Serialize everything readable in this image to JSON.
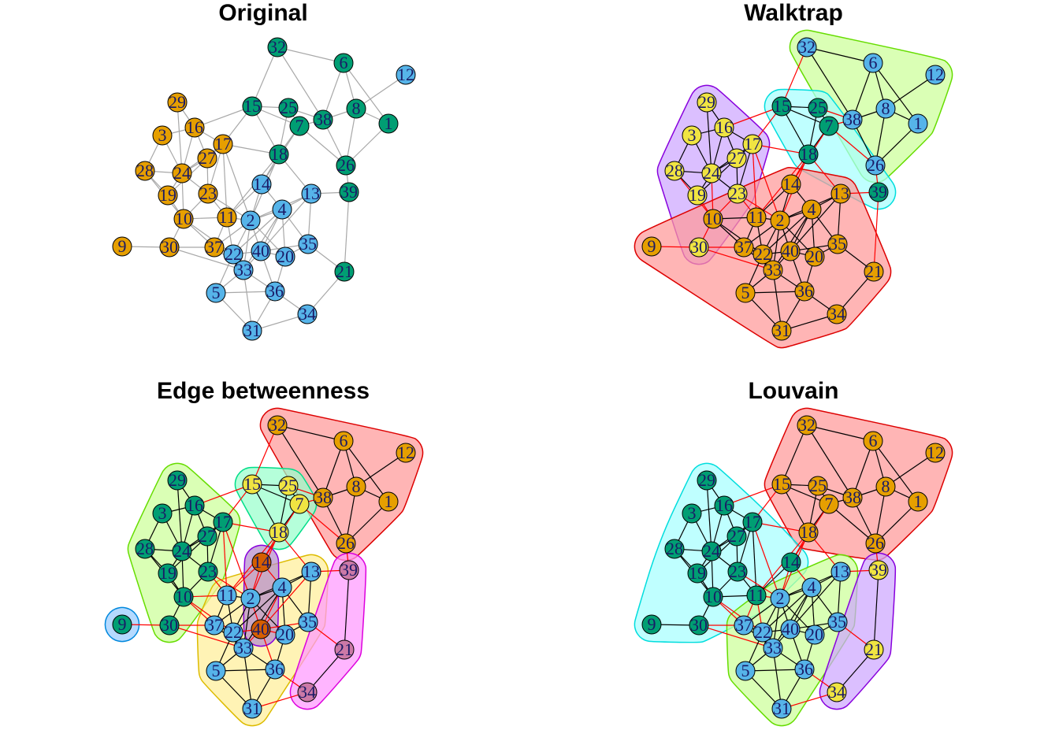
{
  "titles": {
    "original": "Original",
    "walktrap": "Walktrap",
    "edge": "Edge betweenness",
    "louvain": "Louvain"
  },
  "colors": {
    "orange": "#E69F00",
    "teal": "#009E73",
    "blue": "#56B4E9",
    "yellow": "#F0E442",
    "darkorange": "#D55E00",
    "purple": "#CC79A7",
    "darkblue": "#0072B2",
    "edge_gray": "#a8a8a8",
    "crossing_edge": "#ff0000"
  },
  "nodes": [
    "1",
    "2",
    "3",
    "4",
    "5",
    "6",
    "7",
    "8",
    "9",
    "10",
    "11",
    "12",
    "13",
    "14",
    "15",
    "16",
    "17",
    "18",
    "19",
    "20",
    "21",
    "22",
    "23",
    "24",
    "25",
    "26",
    "27",
    "28",
    "29",
    "30",
    "31",
    "32",
    "33",
    "34",
    "35",
    "36",
    "37",
    "38",
    "39",
    "40"
  ],
  "edges": [
    [
      "32",
      "6"
    ],
    [
      "32",
      "15"
    ],
    [
      "32",
      "38"
    ],
    [
      "6",
      "8"
    ],
    [
      "6",
      "38"
    ],
    [
      "6",
      "1"
    ],
    [
      "12",
      "8"
    ],
    [
      "8",
      "38"
    ],
    [
      "8",
      "1"
    ],
    [
      "8",
      "26"
    ],
    [
      "1",
      "26"
    ],
    [
      "15",
      "25"
    ],
    [
      "15",
      "7"
    ],
    [
      "15",
      "18"
    ],
    [
      "15",
      "16"
    ],
    [
      "15",
      "17"
    ],
    [
      "25",
      "7"
    ],
    [
      "25",
      "38"
    ],
    [
      "25",
      "18"
    ],
    [
      "7",
      "38"
    ],
    [
      "7",
      "18"
    ],
    [
      "7",
      "26"
    ],
    [
      "7",
      "14"
    ],
    [
      "38",
      "26"
    ],
    [
      "26",
      "39"
    ],
    [
      "18",
      "14"
    ],
    [
      "18",
      "2"
    ],
    [
      "18",
      "17"
    ],
    [
      "18",
      "13"
    ],
    [
      "29",
      "16"
    ],
    [
      "29",
      "24"
    ],
    [
      "16",
      "3"
    ],
    [
      "16",
      "17"
    ],
    [
      "16",
      "24"
    ],
    [
      "16",
      "27"
    ],
    [
      "3",
      "24"
    ],
    [
      "3",
      "28"
    ],
    [
      "17",
      "27"
    ],
    [
      "17",
      "24"
    ],
    [
      "17",
      "23"
    ],
    [
      "17",
      "11"
    ],
    [
      "27",
      "24"
    ],
    [
      "27",
      "23"
    ],
    [
      "27",
      "19"
    ],
    [
      "28",
      "24"
    ],
    [
      "28",
      "19"
    ],
    [
      "28",
      "10"
    ],
    [
      "24",
      "19"
    ],
    [
      "24",
      "10"
    ],
    [
      "24",
      "23"
    ],
    [
      "19",
      "10"
    ],
    [
      "23",
      "10"
    ],
    [
      "23",
      "11"
    ],
    [
      "23",
      "2"
    ],
    [
      "10",
      "11"
    ],
    [
      "10",
      "30"
    ],
    [
      "10",
      "37"
    ],
    [
      "10",
      "22"
    ],
    [
      "9",
      "30"
    ],
    [
      "30",
      "37"
    ],
    [
      "30",
      "33"
    ],
    [
      "11",
      "2"
    ],
    [
      "11",
      "22"
    ],
    [
      "11",
      "37"
    ],
    [
      "14",
      "2"
    ],
    [
      "14",
      "4"
    ],
    [
      "14",
      "11"
    ],
    [
      "2",
      "4"
    ],
    [
      "2",
      "40"
    ],
    [
      "2",
      "22"
    ],
    [
      "2",
      "33"
    ],
    [
      "2",
      "20"
    ],
    [
      "2",
      "13"
    ],
    [
      "2",
      "37"
    ],
    [
      "4",
      "13"
    ],
    [
      "4",
      "40"
    ],
    [
      "4",
      "20"
    ],
    [
      "4",
      "35"
    ],
    [
      "4",
      "33"
    ],
    [
      "4",
      "22"
    ],
    [
      "13",
      "40"
    ],
    [
      "13",
      "35"
    ],
    [
      "37",
      "22"
    ],
    [
      "37",
      "33"
    ],
    [
      "22",
      "40"
    ],
    [
      "22",
      "33"
    ],
    [
      "22",
      "5"
    ],
    [
      "40",
      "20"
    ],
    [
      "40",
      "35"
    ],
    [
      "40",
      "36"
    ],
    [
      "40",
      "33"
    ],
    [
      "20",
      "35"
    ],
    [
      "20",
      "36"
    ],
    [
      "33",
      "5"
    ],
    [
      "33",
      "36"
    ],
    [
      "33",
      "31"
    ],
    [
      "5",
      "36"
    ],
    [
      "5",
      "31"
    ],
    [
      "36",
      "31"
    ],
    [
      "36",
      "34"
    ],
    [
      "35",
      "21"
    ],
    [
      "39",
      "21"
    ],
    [
      "21",
      "34"
    ],
    [
      "31",
      "34"
    ],
    [
      "18",
      "11"
    ],
    [
      "39",
      "13"
    ],
    [
      "17",
      "2"
    ]
  ],
  "panels": {
    "original": {
      "node_colors": {
        "1": "teal",
        "2": "blue",
        "3": "orange",
        "4": "blue",
        "5": "blue",
        "6": "teal",
        "7": "teal",
        "8": "teal",
        "9": "orange",
        "10": "orange",
        "11": "orange",
        "12": "blue",
        "13": "blue",
        "14": "blue",
        "15": "teal",
        "16": "orange",
        "17": "orange",
        "18": "teal",
        "19": "orange",
        "20": "blue",
        "21": "teal",
        "22": "blue",
        "23": "orange",
        "24": "orange",
        "25": "teal",
        "26": "teal",
        "27": "orange",
        "28": "orange",
        "29": "orange",
        "30": "orange",
        "31": "blue",
        "32": "teal",
        "33": "blue",
        "34": "blue",
        "35": "blue",
        "36": "blue",
        "37": "orange",
        "38": "teal",
        "39": "teal",
        "40": "blue"
      }
    },
    "walktrap": {
      "communities": [
        {
          "color": "#CCFF99",
          "border": "#66DD00",
          "members": [
            "32",
            "6",
            "12",
            "8",
            "1",
            "38",
            "26"
          ],
          "node_color": "blue"
        },
        {
          "color": "#A6FFFF",
          "border": "#00DDDD",
          "members": [
            "15",
            "25",
            "7",
            "18",
            "39"
          ],
          "node_color": "teal"
        },
        {
          "color": "#CDA6FF",
          "border": "#8800DD",
          "members": [
            "29",
            "16",
            "3",
            "17",
            "27",
            "28",
            "24",
            "19",
            "23",
            "30"
          ],
          "node_color": "yellow"
        },
        {
          "color": "#FF9999",
          "border": "#DD0000",
          "members": [
            "14",
            "13",
            "10",
            "11",
            "2",
            "4",
            "9",
            "37",
            "22",
            "40",
            "20",
            "35",
            "33",
            "5",
            "36",
            "21",
            "31",
            "34"
          ],
          "node_color": "orange"
        }
      ]
    },
    "edge": {
      "communities": [
        {
          "color": "#FF9999",
          "border": "#DD0000",
          "members": [
            "32",
            "6",
            "12",
            "8",
            "1",
            "38",
            "26"
          ],
          "node_color": "orange"
        },
        {
          "color": "#99FFCC",
          "border": "#00DD88",
          "members": [
            "15",
            "25",
            "7",
            "18"
          ],
          "node_color": "yellow"
        },
        {
          "color": "#CCFF99",
          "border": "#66DD00",
          "members": [
            "29",
            "16",
            "3",
            "17",
            "27",
            "28",
            "24",
            "19",
            "23",
            "10",
            "30"
          ],
          "node_color": "teal"
        },
        {
          "color": "#99CCFF",
          "border": "#0088DD",
          "members": [
            "9"
          ],
          "node_color": "teal"
        },
        {
          "color": "#FFEE99",
          "border": "#DDBB00",
          "members": [
            "13",
            "11",
            "2",
            "4",
            "37",
            "22",
            "20",
            "35",
            "33",
            "5",
            "36",
            "31"
          ],
          "node_color": "blue"
        },
        {
          "color": "#B58CCC",
          "border": "#8800DD",
          "members": [
            "14",
            "40"
          ],
          "node_color": "darkorange"
        },
        {
          "color": "#FF99FF",
          "border": "#DD00DD",
          "members": [
            "39",
            "21",
            "34"
          ],
          "node_color": "purple"
        }
      ]
    },
    "louvain": {
      "communities": [
        {
          "color": "#FF9999",
          "border": "#DD0000",
          "members": [
            "32",
            "6",
            "12",
            "8",
            "1",
            "38",
            "26",
            "15",
            "25",
            "7",
            "18"
          ],
          "node_color": "orange"
        },
        {
          "color": "#A6FFFF",
          "border": "#00DDDD",
          "members": [
            "29",
            "16",
            "3",
            "17",
            "27",
            "28",
            "24",
            "19",
            "23",
            "10",
            "9",
            "30",
            "11",
            "14"
          ],
          "node_color": "teal"
        },
        {
          "color": "#CCFF99",
          "border": "#66DD00",
          "members": [
            "13",
            "2",
            "4",
            "37",
            "22",
            "40",
            "20",
            "35",
            "33",
            "5",
            "36",
            "31"
          ],
          "node_color": "blue"
        },
        {
          "color": "#CDA6FF",
          "border": "#8800DD",
          "members": [
            "39",
            "21",
            "34"
          ],
          "node_color": "yellow"
        }
      ]
    }
  }
}
